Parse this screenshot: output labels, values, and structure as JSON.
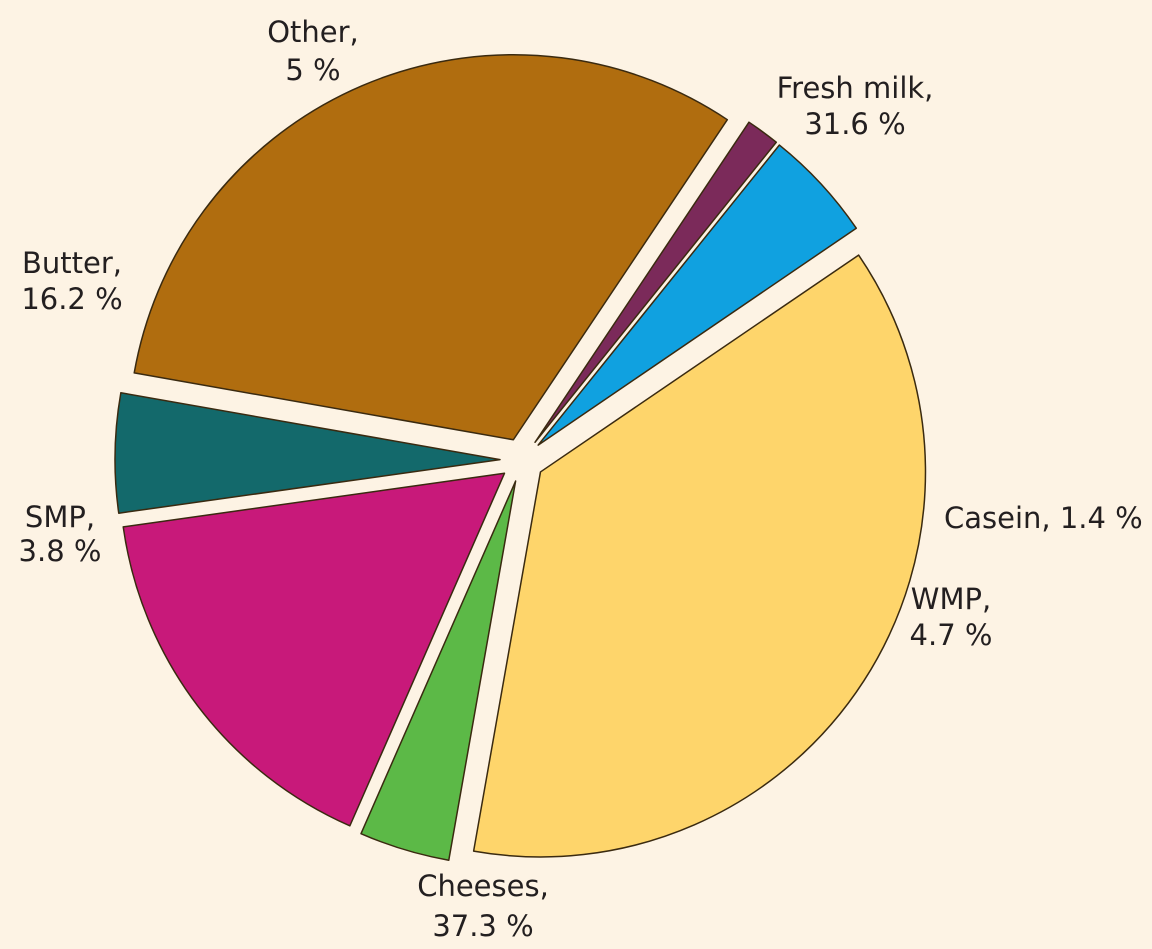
{
  "chart_data": {
    "type": "pie",
    "title": "",
    "exploded": true,
    "slices": [
      {
        "label": "Fresh milk",
        "value": 31.6,
        "color": "#b06d0f",
        "text_lines": [
          "Fresh milk,",
          "31.6 %"
        ]
      },
      {
        "label": "Casein",
        "value": 1.4,
        "color": "#7b2a5a",
        "text_lines": [
          "Casein, 1.4 %"
        ]
      },
      {
        "label": "WMP",
        "value": 4.7,
        "color": "#10a1e0",
        "text_lines": [
          "WMP,",
          "4.7 %"
        ]
      },
      {
        "label": "Cheeses",
        "value": 37.3,
        "color": "#fed56b",
        "text_lines": [
          "Cheeses,",
          "37.3 %"
        ]
      },
      {
        "label": "SMP",
        "value": 3.8,
        "color": "#5cb947",
        "text_lines": [
          "SMP,",
          "3.8 %"
        ]
      },
      {
        "label": "Butter",
        "value": 16.2,
        "color": "#c8197a",
        "text_lines": [
          "Butter,",
          "16.2 %"
        ]
      },
      {
        "label": "Other",
        "value": 5,
        "color": "#13696b",
        "text_lines": [
          "Other,",
          "5 %"
        ]
      }
    ]
  }
}
